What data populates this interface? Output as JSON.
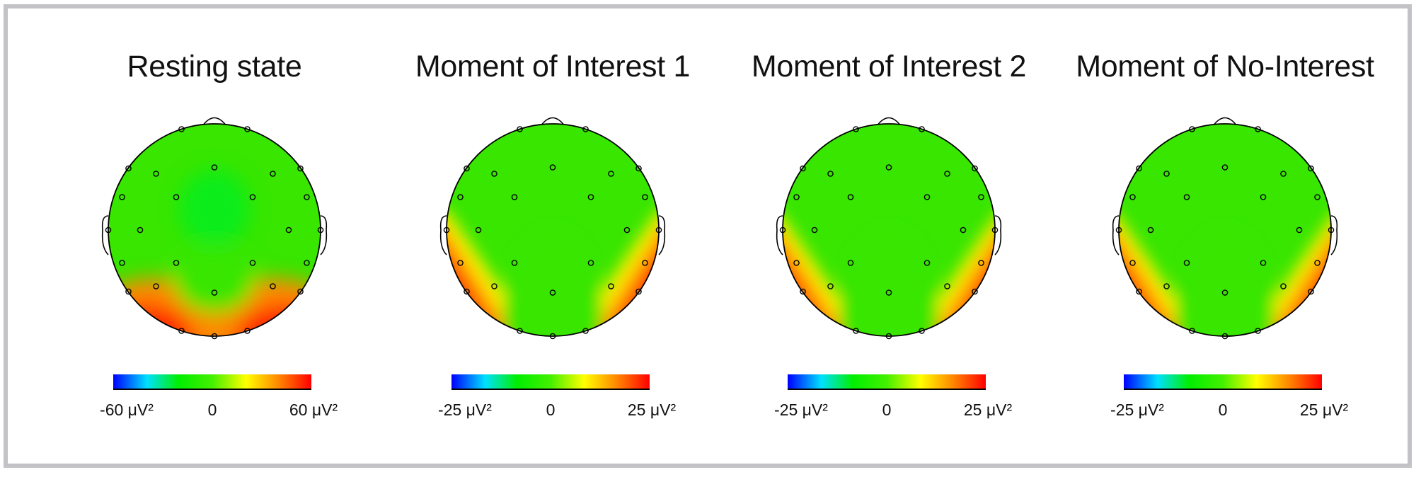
{
  "colors": {
    "scale": [
      "#0000ff",
      "#00e0ff",
      "#00ee00",
      "#44f000",
      "#ffff00",
      "#ff8a00",
      "#ff0000"
    ],
    "outline": "#000000",
    "frame": "#c3c3c7"
  },
  "panels": [
    {
      "title": "Resting state",
      "pattern": "resting",
      "colorbar": {
        "min": "-60 μV²",
        "mid": "0",
        "max": "60 μV²"
      }
    },
    {
      "title": "Moment of Interest 1",
      "pattern": "v-strong",
      "colorbar": {
        "min": "-25 μV²",
        "mid": "0",
        "max": "25 μV²"
      }
    },
    {
      "title": "Moment of Interest 2",
      "pattern": "v-medium",
      "colorbar": {
        "min": "-25 μV²",
        "mid": "0",
        "max": "25 μV²"
      }
    },
    {
      "title": "Moment of No-Interest",
      "pattern": "v-medium",
      "colorbar": {
        "min": "-25 μV²",
        "mid": "0",
        "max": "25 μV²"
      }
    }
  ]
}
